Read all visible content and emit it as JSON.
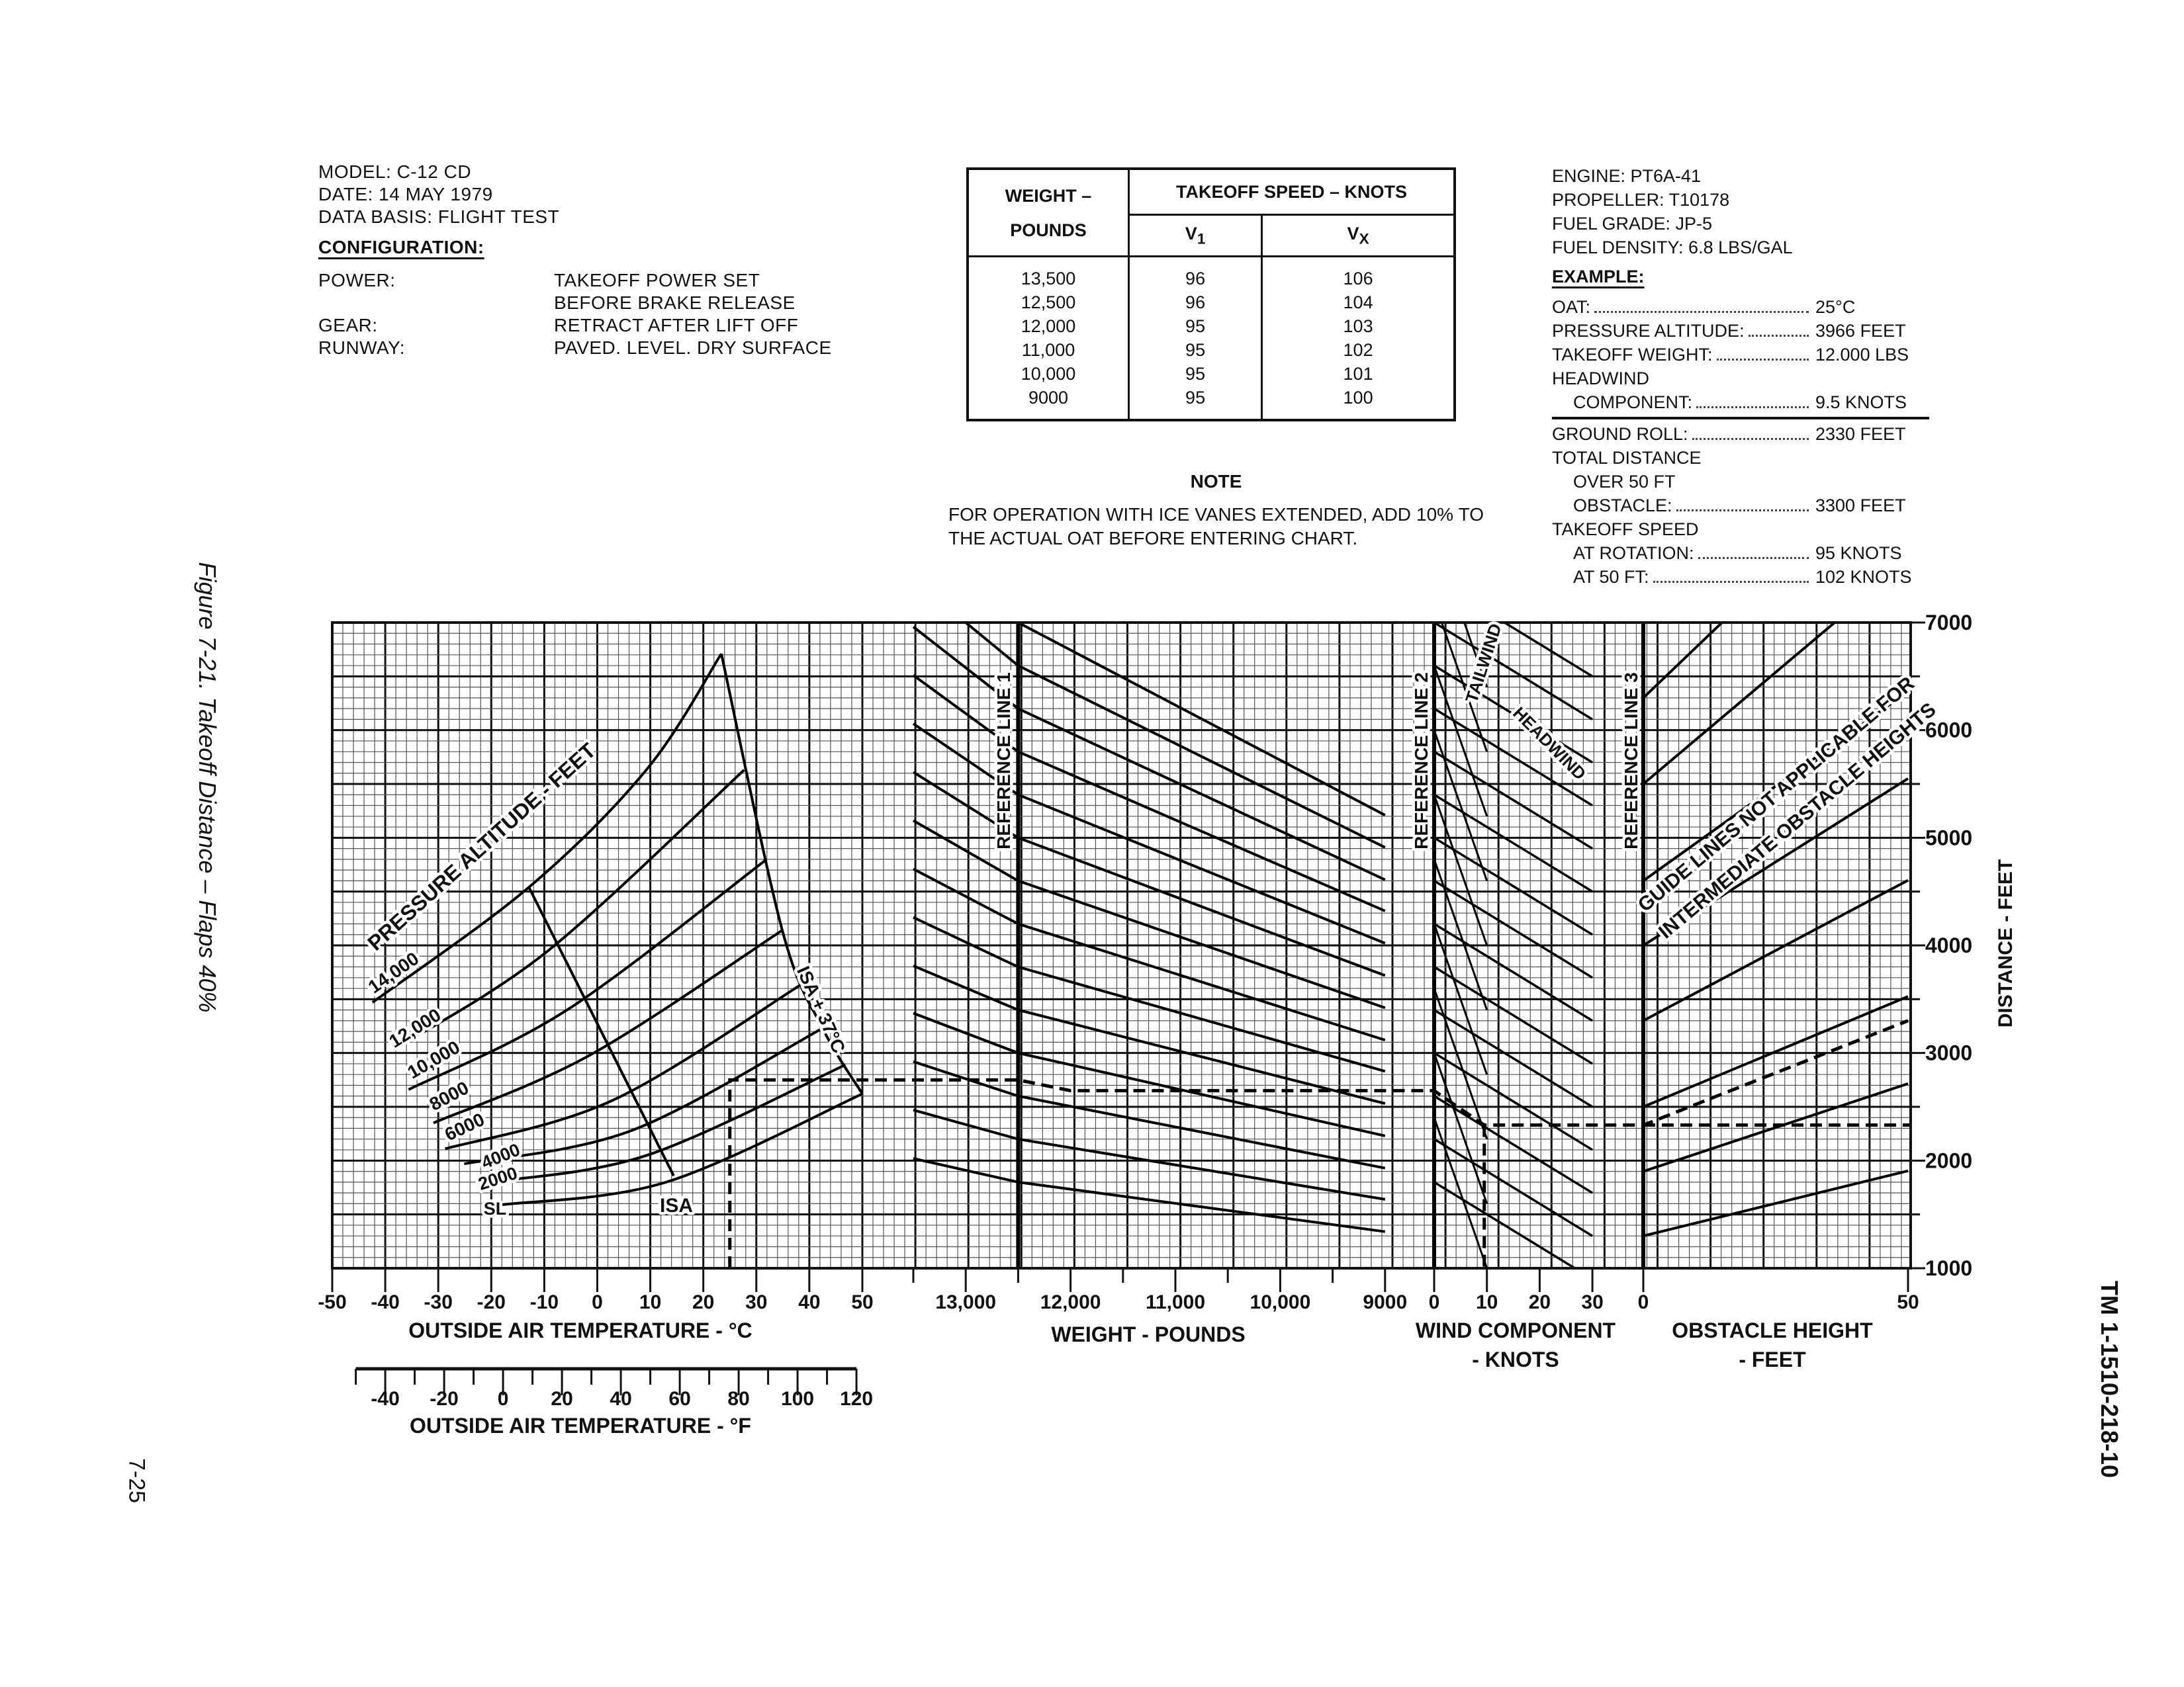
{
  "header_left": {
    "model": "MODEL: C-12 CD",
    "date": "DATE: 14 MAY 1979",
    "data_basis": "DATA BASIS: FLIGHT TEST",
    "configuration_title": "CONFIGURATION:",
    "config": [
      {
        "label": "POWER:",
        "value": "TAKEOFF POWER SET"
      },
      {
        "label": "",
        "value": "BEFORE BRAKE RELEASE"
      },
      {
        "label": "GEAR:",
        "value": "RETRACT AFTER LIFT OFF"
      },
      {
        "label": "RUNWAY:",
        "value": "PAVED. LEVEL. DRY SURFACE"
      }
    ]
  },
  "speed_table": {
    "weight_header_1": "WEIGHT –",
    "weight_header_2": "POUNDS",
    "speed_header": "TAKEOFF SPEED – KNOTS",
    "v1": {
      "main": "V",
      "sub": "1"
    },
    "vx": {
      "main": "V",
      "sub": "X"
    },
    "rows": [
      {
        "weight": "13,500",
        "v1": "96",
        "vx": "106"
      },
      {
        "weight": "12,500",
        "v1": "96",
        "vx": "104"
      },
      {
        "weight": "12,000",
        "v1": "95",
        "vx": "103"
      },
      {
        "weight": "11,000",
        "v1": "95",
        "vx": "102"
      },
      {
        "weight": "10,000",
        "v1": "95",
        "vx": "101"
      },
      {
        "weight": "9000",
        "v1": "95",
        "vx": "100"
      }
    ]
  },
  "note": {
    "title": "NOTE",
    "text": "FOR OPERATION WITH ICE VANES EXTENDED, ADD 10% TO THE ACTUAL OAT BEFORE ENTERING CHART."
  },
  "header_right": {
    "engine": "ENGINE: PT6A-41",
    "propeller": "PROPELLER: T10178",
    "fuel_grade": "FUEL GRADE: JP-5",
    "fuel_density": "FUEL DENSITY: 6.8 LBS/GAL",
    "example_title": "EXAMPLE:",
    "inputs": [
      {
        "label": "OAT:",
        "value": "25°C"
      },
      {
        "label": "PRESSURE ALTITUDE:",
        "value": "3966 FEET"
      },
      {
        "label": "TAKEOFF WEIGHT:",
        "value": "12.000 LBS"
      },
      {
        "label": "HEADWIND",
        "value": ""
      },
      {
        "label": "COMPONENT:",
        "value": "9.5 KNOTS"
      }
    ],
    "results": [
      {
        "label": "GROUND ROLL:",
        "value": "2330 FEET"
      },
      {
        "label": "TOTAL DISTANCE",
        "value": ""
      },
      {
        "label": "OVER 50 FT",
        "value": ""
      },
      {
        "label": "OBSTACLE:",
        "value": "3300 FEET"
      },
      {
        "label": "TAKEOFF SPEED",
        "value": ""
      },
      {
        "label": "AT ROTATION:",
        "value": "95 KNOTS"
      },
      {
        "label": "AT 50 FT:",
        "value": "102 KNOTS"
      }
    ]
  },
  "figure_caption": "Figure 7-21. Takeoff Distance – Flaps 40%",
  "page_number": "7-25",
  "document_number": "TM 1-1510-218-10",
  "chart_data": {
    "type": "line",
    "title": "",
    "grid": true,
    "y_axis": {
      "label": "DISTANCE - FEET",
      "range": [
        1000,
        7000
      ],
      "ticks": [
        "1000",
        "2000",
        "3000",
        "4000",
        "5000",
        "6000",
        "7000"
      ],
      "position": "right"
    },
    "panels": {
      "oat": {
        "xlabel": "OUTSIDE AIR TEMPERATURE - °C",
        "range": [
          -50,
          50
        ],
        "ticks": [
          "-50",
          "-40",
          "-30",
          "-20",
          "-10",
          "0",
          "10",
          "20",
          "30",
          "40",
          "50"
        ],
        "secondary_axis": {
          "xlabel": "OUTSIDE AIR TEMPERATURE - °F",
          "range": [
            -50,
            120
          ],
          "ticks": [
            "-40",
            "-20",
            "0",
            "20",
            "40",
            "60",
            "80",
            "100",
            "120"
          ]
        },
        "label": "PRESSURE ALTITUDE - FEET",
        "series": [
          {
            "name": "14,000",
            "points": [
              [
                -42.4,
                3470
              ],
              [
                -12.9,
                4540
              ],
              [
                9.4,
                5640
              ],
              [
                23.4,
                6710
              ]
            ]
          },
          {
            "name": "12,000",
            "points": [
              [
                -38.1,
                3040
              ],
              [
                -9.3,
                3950
              ],
              [
                27.7,
                5630
              ]
            ]
          },
          {
            "name": "10,000",
            "points": [
              [
                -35.6,
                2660
              ],
              [
                -5.7,
                3400
              ],
              [
                31.7,
                4790
              ]
            ]
          },
          {
            "name": "8000",
            "points": [
              [
                -30.9,
                2350
              ],
              [
                -1.4,
                2980
              ],
              [
                34.9,
                4140
              ]
            ]
          },
          {
            "name": "6000",
            "points": [
              [
                -28.7,
                2110
              ],
              [
                2.9,
                2560
              ],
              [
                38.9,
                3650
              ]
            ]
          },
          {
            "name": "4000",
            "points": [
              [
                -25.1,
                1970
              ],
              [
                6.5,
                2280
              ],
              [
                42.5,
                3230
              ]
            ]
          },
          {
            "name": "2000",
            "points": [
              [
                -20.1,
                1800
              ],
              [
                9.4,
                2050
              ],
              [
                46.8,
                2890
              ]
            ]
          },
          {
            "name": "SL",
            "points": [
              [
                -17.9,
                1590
              ],
              [
                13.0,
                1800
              ],
              [
                50.0,
                2620
              ]
            ]
          }
        ],
        "boundaries": [
          {
            "name": "ISA",
            "points": [
              [
                -12.9,
                4540
              ],
              [
                14.4,
                1860
              ]
            ]
          },
          {
            "name": "ISA + 37°C",
            "points": [
              [
                23.4,
                6710
              ],
              [
                34.9,
                4140
              ],
              [
                42.5,
                3230
              ],
              [
                50.0,
                2620
              ]
            ]
          }
        ]
      },
      "weight": {
        "xlabel": "WEIGHT - POUNDS",
        "range": [
          13500,
          9000
        ],
        "ticks": [
          "13,000",
          "12,000",
          "11,000",
          "10,000",
          "9000"
        ],
        "reference_line": {
          "label": "REFERENCE LINE 1",
          "at": 12500
        },
        "guides_at": [
          13500,
          12500,
          9000
        ],
        "guides": [
          [
            2020,
            1800,
            1340
          ],
          [
            2470,
            2200,
            1640
          ],
          [
            2920,
            2600,
            1930
          ],
          [
            3370,
            3000,
            2230
          ],
          [
            3810,
            3400,
            2530
          ],
          [
            4260,
            3800,
            2830
          ],
          [
            4710,
            4200,
            3120
          ],
          [
            5160,
            4600,
            3420
          ],
          [
            5610,
            5000,
            3720
          ],
          [
            6060,
            5400,
            4020
          ],
          [
            6510,
            5800,
            4320
          ],
          [
            6960,
            6200,
            4610
          ],
          [
            7400,
            6600,
            4910
          ],
          [
            7850,
            7000,
            5210
          ]
        ]
      },
      "wind": {
        "xlabel": "WIND COMPONENT",
        "xlabel_2": "- KNOTS",
        "range": [
          0,
          30
        ],
        "ticks": [
          "0",
          "10",
          "20",
          "30"
        ],
        "reference_line": {
          "label": "REFERENCE LINE 2",
          "at": 0
        },
        "headwind_label": "HEADWIND",
        "tailwind_label": "TAILWIND",
        "headwind_guides_at": [
          0,
          30
        ],
        "headwind_guides": [
          [
            1800,
            900
          ],
          [
            2200,
            1300
          ],
          [
            2600,
            1700
          ],
          [
            3000,
            2100
          ],
          [
            3400,
            2500
          ],
          [
            3800,
            2900
          ],
          [
            4200,
            3300
          ],
          [
            4600,
            3700
          ],
          [
            5000,
            4100
          ],
          [
            5400,
            4500
          ],
          [
            5800,
            4900
          ],
          [
            6200,
            5300
          ],
          [
            6600,
            5700
          ],
          [
            7000,
            6100
          ],
          [
            7400,
            6500
          ]
        ],
        "tailwind_guides_at": [
          0,
          10
        ],
        "tailwind_guides": [
          [
            2400,
            1000
          ],
          [
            3000,
            1600
          ],
          [
            3600,
            2200
          ],
          [
            4200,
            2800
          ],
          [
            4800,
            3400
          ],
          [
            5400,
            4000
          ],
          [
            6000,
            4600
          ],
          [
            6600,
            5200
          ],
          [
            7200,
            5800
          ],
          [
            7800,
            6400
          ]
        ]
      },
      "obstacle": {
        "xlabel": "OBSTACLE HEIGHT",
        "xlabel_2": "- FEET",
        "range": [
          0,
          50
        ],
        "ticks": [
          "0",
          "50"
        ],
        "reference_line": {
          "label": "REFERENCE LINE 3",
          "at": 0
        },
        "annotation": [
          "GUIDE LINES NOT APPLICABLE FOR",
          "INTERMEDIATE OBSTACLE HEIGHTS"
        ],
        "guides_at": [
          0,
          50
        ],
        "guides": [
          [
            1300,
            1905
          ],
          [
            1900,
            2715
          ],
          [
            2500,
            3525
          ],
          [
            3300,
            4605
          ],
          [
            4000,
            5550
          ],
          [
            4600,
            6360
          ],
          [
            5500,
            7575
          ],
          [
            6300,
            8655
          ]
        ]
      }
    },
    "example_path": {
      "oat_c": 25,
      "pressure_altitude": 3966,
      "distance_at_reference_1": 2750,
      "weight": 12000,
      "distance_after_weight": 2650,
      "headwind_kt": 9.5,
      "ground_roll": 2330,
      "obstacle_ft": 50,
      "total_distance": 3300
    }
  }
}
